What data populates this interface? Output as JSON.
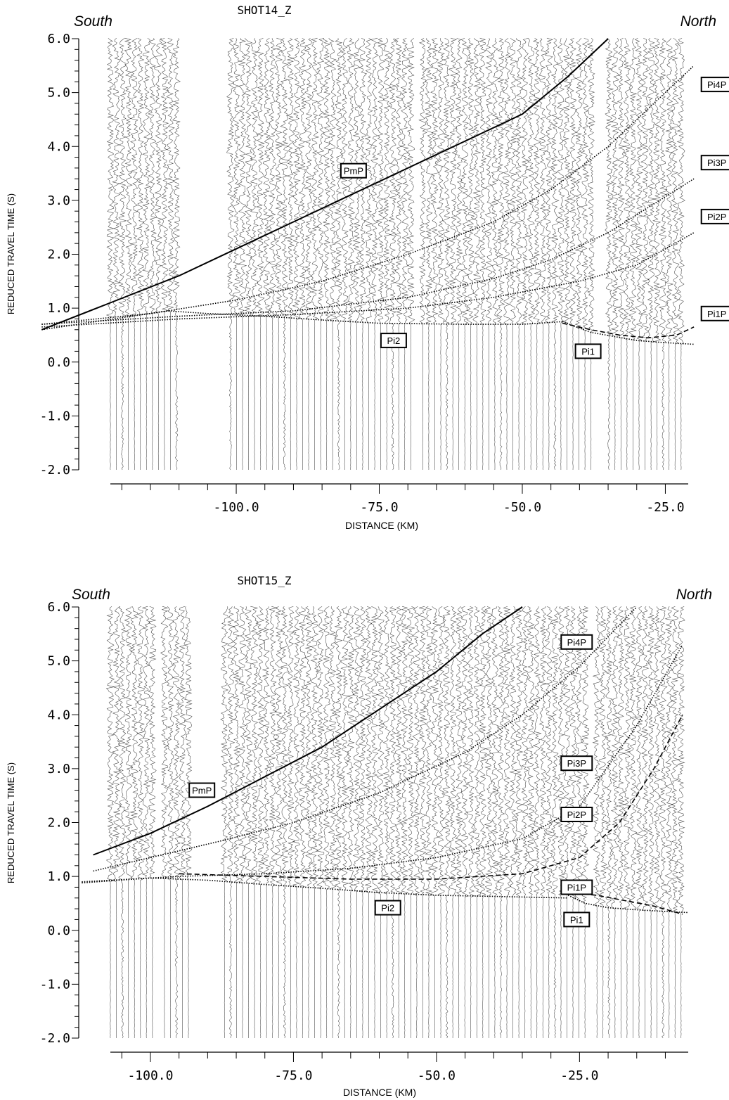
{
  "chart_data": [
    {
      "type": "line",
      "title": "SHOT14_Z",
      "left_label": "South",
      "right_label": "North",
      "xlabel": "DISTANCE (KM)",
      "ylabel": "REDUCED TRAVEL TIME (S)",
      "xlim": [
        -122.0,
        -21.0
      ],
      "ylim": [
        -2.0,
        6.0
      ],
      "y_ticks": [
        "6.0",
        "5.0",
        "4.0",
        "3.0",
        "2.0",
        "1.0",
        "0.0",
        "-1.0",
        "-2.0"
      ],
      "x_ticks": [
        "-100.0",
        "-75.0",
        "-50.0",
        "-25.0"
      ],
      "x_tick_values": [
        -100,
        -75,
        -50,
        -25
      ],
      "grid": false,
      "traces": {
        "gap_ranges": [
          [
            -109.5,
            -101.5
          ],
          [
            -69.0,
            -68.0
          ],
          [
            -37.5,
            -35.5
          ]
        ],
        "start_km": -122.0,
        "end_km": -21.5
      },
      "series": [
        {
          "name": "PmP",
          "style": "solid",
          "x": [
            -134,
            -122,
            -110,
            -100,
            -90,
            -80,
            -70,
            -60,
            -50,
            -42,
            -35
          ],
          "y": [
            0.6,
            1.1,
            1.6,
            2.1,
            2.6,
            3.1,
            3.6,
            4.1,
            4.6,
            5.3,
            6.0
          ]
        },
        {
          "name": "Pi4P",
          "style": "dotted",
          "x": [
            -134,
            -115,
            -100,
            -85,
            -70,
            -55,
            -45,
            -35,
            -20
          ],
          "y": [
            0.7,
            0.9,
            1.15,
            1.5,
            2.0,
            2.6,
            3.2,
            4.0,
            5.5
          ]
        },
        {
          "name": "Pi3P",
          "style": "dotted",
          "x": [
            -134,
            -110,
            -90,
            -70,
            -55,
            -45,
            -35,
            -20
          ],
          "y": [
            0.7,
            0.85,
            0.95,
            1.2,
            1.55,
            1.9,
            2.4,
            3.4
          ]
        },
        {
          "name": "Pi2P",
          "style": "dotted",
          "x": [
            -134,
            -110,
            -90,
            -70,
            -55,
            -40,
            -30,
            -20
          ],
          "y": [
            0.65,
            0.8,
            0.88,
            1.0,
            1.2,
            1.5,
            1.8,
            2.4
          ]
        },
        {
          "name": "Pi1P",
          "style": "dashed",
          "x": [
            -43,
            -38,
            -33,
            -28,
            -23,
            -20
          ],
          "y": [
            0.72,
            0.6,
            0.5,
            0.45,
            0.5,
            0.65
          ]
        },
        {
          "name": "Pi2",
          "style": "dotted",
          "x": [
            -134,
            -112,
            -105,
            -95,
            -85,
            -75,
            -60,
            -50,
            -43
          ],
          "y": [
            0.6,
            0.95,
            0.9,
            0.85,
            0.78,
            0.72,
            0.7,
            0.7,
            0.75
          ]
        },
        {
          "name": "Pi1",
          "style": "dotted",
          "x": [
            -43,
            -38,
            -30,
            -25,
            -20
          ],
          "y": [
            0.75,
            0.55,
            0.4,
            0.36,
            0.33
          ]
        }
      ],
      "labels": [
        {
          "text": "PmP",
          "x": -79.5,
          "y": 3.55
        },
        {
          "text": "Pi4P",
          "x": -16.0,
          "y": 5.15
        },
        {
          "text": "Pi3P",
          "x": -16.0,
          "y": 3.7
        },
        {
          "text": "Pi2P",
          "x": -16.0,
          "y": 2.7
        },
        {
          "text": "Pi1P",
          "x": -16.0,
          "y": 0.9
        },
        {
          "text": "Pi2",
          "x": -72.5,
          "y": 0.4
        },
        {
          "text": "Pi1",
          "x": -38.5,
          "y": 0.2
        }
      ]
    },
    {
      "type": "line",
      "title": "SHOT15_Z",
      "left_label": "South",
      "right_label": "North",
      "xlabel": "DISTANCE (KM)",
      "ylabel": "REDUCED TRAVEL TIME (S)",
      "xlim": [
        -107.0,
        -6.0
      ],
      "ylim": [
        -2.0,
        6.0
      ],
      "y_ticks": [
        "6.0",
        "5.0",
        "4.0",
        "3.0",
        "2.0",
        "1.0",
        "0.0",
        "-1.0",
        "-2.0"
      ],
      "x_ticks": [
        "-100.0",
        "-75.0",
        "-50.0",
        "-25.0"
      ],
      "x_tick_values": [
        -100,
        -75,
        -50,
        -25
      ],
      "grid": false,
      "traces": {
        "gap_ranges": [
          [
            -99.5,
            -98.0
          ],
          [
            -93.0,
            -87.5
          ],
          [
            -23.5,
            -22.0
          ]
        ],
        "start_km": -107.0,
        "end_km": -7.0
      },
      "series": [
        {
          "name": "PmP",
          "style": "solid",
          "x": [
            -110,
            -100,
            -90,
            -80,
            -70,
            -60,
            -50,
            -42,
            -35
          ],
          "y": [
            1.4,
            1.8,
            2.3,
            2.85,
            3.4,
            4.1,
            4.8,
            5.5,
            6.0
          ]
        },
        {
          "name": "Pi4P",
          "style": "dotted",
          "x": [
            -110,
            -100,
            -88,
            -75,
            -60,
            -45,
            -35,
            -25,
            -15
          ],
          "y": [
            1.1,
            1.35,
            1.65,
            2.0,
            2.55,
            3.3,
            4.0,
            4.9,
            6.0
          ]
        },
        {
          "name": "Pi3P",
          "style": "dotted",
          "x": [
            -112,
            -95,
            -80,
            -65,
            -50,
            -35,
            -25,
            -15,
            -7
          ],
          "y": [
            0.9,
            1.0,
            1.05,
            1.15,
            1.35,
            1.7,
            2.3,
            3.8,
            5.3
          ]
        },
        {
          "name": "Pi2P",
          "style": "dashed",
          "x": [
            -95,
            -80,
            -65,
            -50,
            -35,
            -25,
            -18,
            -12,
            -7
          ],
          "y": [
            1.05,
            1.0,
            0.95,
            0.95,
            1.05,
            1.35,
            2.0,
            3.0,
            4.0
          ]
        },
        {
          "name": "Pi1P",
          "style": "dashed",
          "x": [
            -27,
            -22,
            -17,
            -12,
            -7
          ],
          "y": [
            0.7,
            0.65,
            0.55,
            0.45,
            0.3
          ]
        },
        {
          "name": "Pi2",
          "style": "dotted",
          "x": [
            -112,
            -100,
            -90,
            -80,
            -70,
            -60,
            -50,
            -40,
            -27
          ],
          "y": [
            0.88,
            0.97,
            0.93,
            0.85,
            0.78,
            0.7,
            0.65,
            0.63,
            0.6
          ]
        },
        {
          "name": "Pi1",
          "style": "dotted",
          "x": [
            -27,
            -24,
            -20,
            -15,
            -10,
            -6
          ],
          "y": [
            0.65,
            0.5,
            0.42,
            0.38,
            0.35,
            0.33
          ]
        }
      ],
      "labels": [
        {
          "text": "PmP",
          "x": -91.0,
          "y": 2.6
        },
        {
          "text": "Pi4P",
          "x": -25.5,
          "y": 5.35
        },
        {
          "text": "Pi3P",
          "x": -25.5,
          "y": 3.1
        },
        {
          "text": "Pi2P",
          "x": -25.5,
          "y": 2.15
        },
        {
          "text": "Pi1P",
          "x": -25.5,
          "y": 0.8
        },
        {
          "text": "Pi2",
          "x": -58.5,
          "y": 0.42
        },
        {
          "text": "Pi1",
          "x": -25.5,
          "y": 0.2
        }
      ]
    }
  ]
}
